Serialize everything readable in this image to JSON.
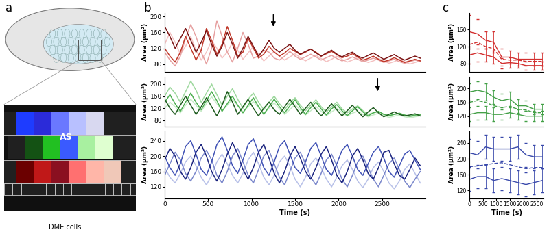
{
  "panel_labels": [
    "a",
    "b",
    "c"
  ],
  "diagram": {
    "labels": [
      "AS",
      "DME cells"
    ]
  },
  "chart_data": [
    {
      "type": "line",
      "y_label": "Area (µm²)",
      "xlim": [
        0,
        3000
      ],
      "ylim": [
        60,
        210
      ],
      "yticks": [
        80,
        120,
        160,
        200
      ],
      "tick_labels": "y",
      "annotations": [
        {
          "x": 1250,
          "y": 170
        }
      ],
      "x": [
        0,
        60,
        120,
        180,
        240,
        300,
        360,
        420,
        480,
        540,
        600,
        660,
        720,
        780,
        840,
        900,
        960,
        1020,
        1080,
        1140,
        1200,
        1260,
        1320,
        1380,
        1440,
        1500,
        1560,
        1620,
        1680,
        1740,
        1800,
        1860,
        1920,
        1980,
        2040,
        2100,
        2160,
        2220,
        2280,
        2340,
        2400,
        2460,
        2520,
        2580,
        2640,
        2700,
        2760,
        2820,
        2880,
        2940
      ],
      "series": [
        {
          "color": "#f4c2c2",
          "values": [
            130,
            160,
            135,
            105,
            125,
            150,
            115,
            90,
            110,
            140,
            120,
            95,
            110,
            135,
            115,
            92,
            108,
            125,
            105,
            88,
            100,
            112,
            100,
            90,
            98,
            106,
            96,
            88,
            95,
            102,
            94,
            86,
            92,
            100,
            92,
            85,
            90,
            96,
            90,
            84,
            88,
            94,
            88,
            82,
            86,
            92,
            86,
            80,
            84,
            88
          ]
        },
        {
          "color": "#e6a0a0",
          "values": [
            110,
            90,
            75,
            100,
            145,
            180,
            150,
            110,
            80,
            120,
            190,
            150,
            110,
            85,
            120,
            160,
            130,
            95,
            100,
            115,
            110,
            95,
            90,
            100,
            112,
            100,
            92,
            98,
            105,
            98,
            90,
            96,
            102,
            94,
            88,
            92,
            98,
            92,
            86,
            90,
            95,
            90,
            84,
            88,
            92,
            86,
            82,
            86,
            90,
            86
          ]
        },
        {
          "color": "#c0392b",
          "values": [
            120,
            100,
            85,
            110,
            150,
            120,
            90,
            115,
            170,
            140,
            105,
            130,
            175,
            140,
            100,
            110,
            145,
            120,
            95,
            105,
            125,
            110,
            100,
            108,
            120,
            112,
            104,
            110,
            118,
            110,
            100,
            106,
            112,
            104,
            96,
            100,
            106,
            98,
            90,
            94,
            100,
            92,
            86,
            90,
            96,
            90,
            84,
            88,
            92,
            88
          ]
        },
        {
          "color": "#7b1414",
          "values": [
            175,
            150,
            120,
            145,
            170,
            140,
            110,
            135,
            165,
            130,
            100,
            125,
            160,
            130,
            95,
            120,
            150,
            125,
            100,
            118,
            140,
            120,
            110,
            120,
            130,
            115,
            105,
            112,
            118,
            108,
            100,
            108,
            115,
            105,
            98,
            105,
            110,
            100,
            95,
            102,
            108,
            100,
            92,
            98,
            104,
            96,
            90,
            95,
            100,
            95
          ]
        }
      ]
    },
    {
      "type": "line",
      "y_label": "Area (µm²)",
      "xlim": [
        0,
        3000
      ],
      "ylim": [
        60,
        225
      ],
      "yticks": [
        80,
        120,
        160,
        200
      ],
      "tick_labels": "y",
      "annotations": [
        {
          "x": 2450,
          "y": 170
        }
      ],
      "x": [
        0,
        60,
        120,
        180,
        240,
        300,
        360,
        420,
        480,
        540,
        600,
        660,
        720,
        780,
        840,
        900,
        960,
        1020,
        1080,
        1140,
        1200,
        1260,
        1320,
        1380,
        1440,
        1500,
        1560,
        1620,
        1680,
        1740,
        1800,
        1860,
        1920,
        1980,
        2040,
        2100,
        2160,
        2220,
        2280,
        2340,
        2400,
        2460,
        2520,
        2580,
        2640,
        2700,
        2760,
        2820,
        2880,
        2940
      ],
      "series": [
        {
          "color": "#c8ebc8",
          "values": [
            120,
            140,
            125,
            105,
            130,
            150,
            130,
            110,
            135,
            158,
            135,
            112,
            130,
            150,
            128,
            108,
            125,
            142,
            122,
            104,
            120,
            138,
            118,
            100,
            116,
            132,
            114,
            98,
            112,
            126,
            110,
            96,
            108,
            120,
            106,
            94,
            104,
            110,
            100,
            92,
            98,
            104,
            96,
            90,
            94,
            98,
            92,
            88,
            92,
            95
          ]
        },
        {
          "color": "#9ed89e",
          "values": [
            160,
            190,
            170,
            140,
            175,
            210,
            180,
            140,
            170,
            200,
            165,
            130,
            160,
            185,
            150,
            120,
            150,
            170,
            140,
            115,
            140,
            160,
            135,
            115,
            138,
            155,
            130,
            112,
            130,
            148,
            125,
            108,
            125,
            140,
            118,
            105,
            118,
            128,
            112,
            100,
            105,
            110,
            100,
            95,
            100,
            102,
            96,
            92,
            96,
            98
          ]
        },
        {
          "color": "#4caf50",
          "values": [
            140,
            165,
            135,
            110,
            140,
            170,
            140,
            115,
            145,
            175,
            145,
            110,
            135,
            160,
            130,
            105,
            130,
            155,
            125,
            100,
            125,
            150,
            125,
            105,
            128,
            148,
            122,
            100,
            122,
            140,
            118,
            98,
            118,
            132,
            112,
            96,
            112,
            125,
            108,
            95,
            105,
            110,
            100,
            96,
            100,
            104,
            98,
            94,
            98,
            100
          ]
        },
        {
          "color": "#1e5b1e",
          "values": [
            150,
            120,
            100,
            130,
            160,
            130,
            100,
            125,
            155,
            125,
            95,
            130,
            175,
            140,
            100,
            125,
            150,
            120,
            95,
            120,
            140,
            115,
            100,
            125,
            150,
            125,
            100,
            120,
            140,
            115,
            95,
            115,
            135,
            115,
            95,
            112,
            130,
            110,
            92,
            108,
            122,
            105,
            92,
            100,
            108,
            100,
            95,
            98,
            102,
            95
          ]
        }
      ]
    },
    {
      "type": "line",
      "y_label": "Area (µm²)",
      "x_label": "Time (s)",
      "xlim": [
        0,
        3000
      ],
      "xticks": [
        0,
        500,
        1000,
        1500,
        2000,
        2500
      ],
      "ylim": [
        90,
        265
      ],
      "yticks": [
        120,
        160,
        200,
        240
      ],
      "x": [
        0,
        60,
        120,
        180,
        240,
        300,
        360,
        420,
        480,
        540,
        600,
        660,
        720,
        780,
        840,
        900,
        960,
        1020,
        1080,
        1140,
        1200,
        1260,
        1320,
        1380,
        1440,
        1500,
        1560,
        1620,
        1680,
        1740,
        1800,
        1860,
        1920,
        1980,
        2040,
        2100,
        2160,
        2220,
        2280,
        2340,
        2400,
        2460,
        2520,
        2580,
        2640,
        2700,
        2760,
        2820,
        2880,
        2940
      ],
      "series": [
        {
          "color": "#b7c0e8",
          "values": [
            170,
            145,
            130,
            155,
            185,
            200,
            175,
            145,
            125,
            150,
            185,
            205,
            180,
            150,
            130,
            155,
            190,
            210,
            180,
            145,
            125,
            150,
            185,
            200,
            175,
            140,
            120,
            145,
            180,
            195,
            170,
            140,
            120,
            145,
            175,
            190,
            165,
            135,
            118,
            140,
            170,
            185,
            160,
            130,
            115,
            135,
            165,
            180,
            155,
            130
          ]
        },
        {
          "color": "#7986cb",
          "values": [
            150,
            180,
            210,
            190,
            155,
            135,
            160,
            195,
            215,
            190,
            150,
            130,
            160,
            200,
            220,
            185,
            150,
            130,
            165,
            200,
            215,
            180,
            145,
            125,
            160,
            195,
            210,
            180,
            145,
            125,
            155,
            190,
            205,
            175,
            140,
            120,
            150,
            185,
            200,
            170,
            140,
            120,
            150,
            180,
            195,
            165,
            135,
            118,
            140,
            160
          ]
        },
        {
          "color": "#3f51b5",
          "values": [
            200,
            170,
            150,
            180,
            225,
            240,
            205,
            165,
            150,
            185,
            230,
            250,
            215,
            175,
            155,
            190,
            230,
            245,
            210,
            170,
            150,
            185,
            225,
            240,
            205,
            170,
            155,
            185,
            220,
            235,
            200,
            165,
            150,
            180,
            215,
            230,
            200,
            165,
            150,
            180,
            210,
            225,
            195,
            160,
            145,
            175,
            205,
            215,
            190,
            165
          ]
        },
        {
          "color": "#1a237e",
          "values": [
            190,
            220,
            200,
            160,
            140,
            170,
            210,
            230,
            200,
            160,
            135,
            165,
            205,
            235,
            205,
            165,
            140,
            170,
            210,
            230,
            195,
            155,
            130,
            160,
            200,
            225,
            195,
            160,
            140,
            170,
            205,
            225,
            190,
            150,
            130,
            160,
            200,
            220,
            190,
            155,
            140,
            170,
            210,
            215,
            180,
            150,
            140,
            165,
            195,
            175
          ]
        }
      ]
    },
    {
      "type": "line",
      "y_label": "Area (µm²)",
      "xlim": [
        0,
        2750
      ],
      "ylim": [
        60,
        200
      ],
      "yticks": [
        80,
        120,
        160
      ],
      "tick_labels": "y",
      "x": [
        0,
        300,
        600,
        900,
        1200,
        1500,
        1800,
        2100,
        2400,
        2700
      ],
      "series": [
        {
          "color": "#d32f2f",
          "line_style": "solid",
          "values": [
            155,
            150,
            135,
            130,
            95,
            95,
            90,
            90,
            90,
            90
          ],
          "errors": [
            40,
            35,
            20,
            25,
            20,
            15,
            15,
            15,
            15,
            15
          ]
        },
        {
          "color": "#d32f2f",
          "line_style": "dashed",
          "values": [
            125,
            130,
            120,
            115,
            90,
            88,
            88,
            85,
            85,
            85
          ]
        },
        {
          "color": "#d32f2f",
          "line_style": "solid",
          "values": [
            100,
            105,
            100,
            95,
            80,
            82,
            80,
            75,
            75,
            75
          ],
          "errors": [
            20,
            20,
            15,
            15,
            12,
            12,
            10,
            10,
            10,
            10
          ]
        }
      ]
    },
    {
      "type": "line",
      "y_label": "Area (µm²)",
      "xlim": [
        0,
        2750
      ],
      "ylim": [
        90,
        235
      ],
      "yticks": [
        120,
        160,
        200
      ],
      "tick_labels": "y",
      "x": [
        0,
        300,
        600,
        900,
        1200,
        1500,
        1800,
        2100,
        2400,
        2700
      ],
      "series": [
        {
          "color": "#43a047",
          "line_style": "solid",
          "values": [
            190,
            195,
            190,
            175,
            165,
            170,
            150,
            150,
            140,
            140
          ],
          "errors": [
            25,
            25,
            25,
            20,
            20,
            20,
            20,
            15,
            15,
            15
          ]
        },
        {
          "color": "#43a047",
          "line_style": "dashed",
          "values": [
            160,
            165,
            160,
            150,
            145,
            148,
            140,
            138,
            130,
            130
          ]
        },
        {
          "color": "#43a047",
          "line_style": "solid",
          "values": [
            125,
            130,
            130,
            125,
            125,
            130,
            125,
            120,
            120,
            120
          ],
          "errors": [
            20,
            20,
            20,
            20,
            15,
            15,
            15,
            15,
            15,
            15
          ]
        }
      ]
    },
    {
      "type": "line",
      "y_label": "Area (µm²)",
      "x_label": "Time (s)",
      "xlim": [
        0,
        2750
      ],
      "xticks": [
        0,
        500,
        1000,
        1500,
        2000,
        2500
      ],
      "ylim": [
        100,
        270
      ],
      "yticks": [
        120,
        160,
        200,
        240
      ],
      "x": [
        0,
        300,
        600,
        900,
        1200,
        1500,
        1800,
        2100,
        2400,
        2700
      ],
      "series": [
        {
          "color": "#3949ab",
          "line_style": "solid",
          "values": [
            215,
            210,
            230,
            225,
            225,
            225,
            230,
            210,
            205,
            205
          ],
          "errors": [
            35,
            35,
            30,
            30,
            30,
            30,
            30,
            30,
            30,
            30
          ]
        },
        {
          "color": "#3949ab",
          "line_style": "dashed",
          "values": [
            180,
            182,
            185,
            188,
            190,
            185,
            180,
            175,
            178,
            178
          ]
        },
        {
          "color": "#3949ab",
          "line_style": "solid",
          "values": [
            148,
            155,
            155,
            145,
            150,
            145,
            140,
            135,
            140,
            145
          ],
          "errors": [
            30,
            30,
            30,
            30,
            30,
            30,
            30,
            30,
            30,
            30
          ]
        }
      ]
    }
  ]
}
